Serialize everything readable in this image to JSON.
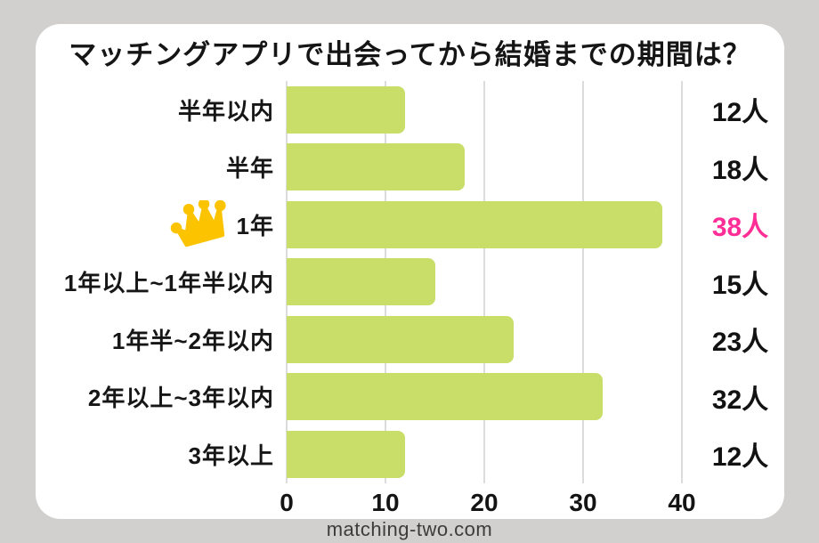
{
  "page": {
    "background_color": "#d1d0ce",
    "card_color": "#ffffff",
    "footer": "matching-two.com"
  },
  "chart_data": {
    "type": "bar",
    "orientation": "horizontal",
    "title": "マッチングアプリで出会ってから結婚までの期間は？",
    "categories": [
      "半年以内",
      "半年",
      "1年",
      "1年以上~1年半以内",
      "1年半~2年以内",
      "2年以上~3年以内",
      "3年以上"
    ],
    "values": [
      12,
      18,
      38,
      15,
      23,
      32,
      12
    ],
    "value_labels": [
      "12人",
      "18人",
      "38人",
      "15人",
      "23人",
      "32人",
      "12人"
    ],
    "unit": "人",
    "xlim": [
      0,
      40
    ],
    "x_ticks": [
      0,
      10,
      20,
      30,
      40
    ],
    "x_tick_labels": [
      "0",
      "10",
      "20",
      "30",
      "40"
    ],
    "grid": true,
    "bar_color": "#c9de68",
    "gridline_color": "#dcdcdc",
    "text_color": "#141414",
    "highlight_index": 2,
    "highlight_color": "#ff2d96",
    "crown_color": "#fcc400",
    "annotations": [
      {
        "type": "crown",
        "row_index": 2,
        "meaning": "top answer"
      }
    ]
  }
}
